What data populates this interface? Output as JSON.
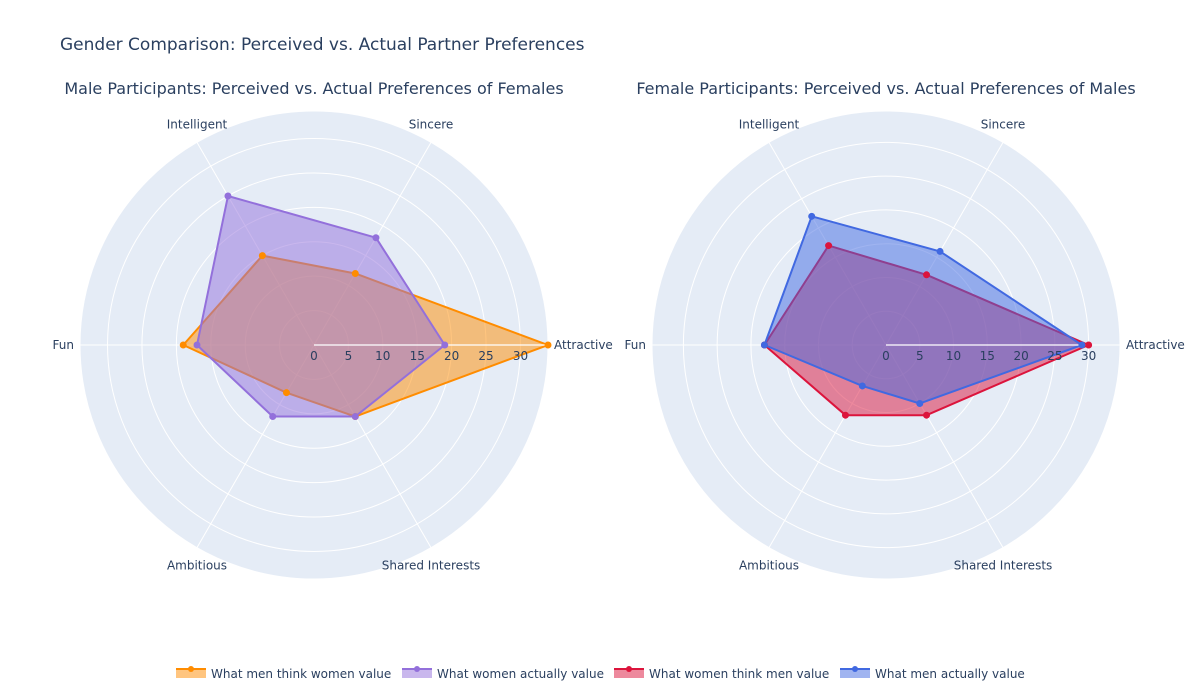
{
  "title": "Gender Comparison: Perceived vs. Actual Partner Preferences",
  "chart_data": [
    {
      "type": "radar",
      "title": "Male Participants: Perceived vs. Actual Preferences of Females",
      "categories": [
        "Attractive",
        "Sincere",
        "Intelligent",
        "Fun",
        "Ambitious",
        "Shared Interests"
      ],
      "radial_ticks": [
        "0",
        "5",
        "10",
        "15",
        "20",
        "25",
        "30"
      ],
      "rlim": [
        0,
        34
      ],
      "series": [
        {
          "name": "What men think women value",
          "color": "#ff8c00",
          "values": [
            34,
            12,
            15,
            19,
            8,
            12
          ]
        },
        {
          "name": "What women actually value",
          "color": "#9370db",
          "values": [
            19,
            18,
            25,
            17,
            12,
            12
          ]
        }
      ]
    },
    {
      "type": "radar",
      "title": "Female Participants: Perceived vs. Actual Preferences of Males",
      "categories": [
        "Attractive",
        "Sincere",
        "Intelligent",
        "Fun",
        "Ambitious",
        "Shared Interests"
      ],
      "radial_ticks": [
        "0",
        "5",
        "10",
        "15",
        "20",
        "25",
        "30"
      ],
      "rlim": [
        0,
        30.5
      ],
      "series": [
        {
          "name": "What women think men value",
          "color": "#dc143c",
          "values": [
            30,
            12,
            17,
            18,
            12,
            12
          ]
        },
        {
          "name": "What men actually value",
          "color": "#4169e1",
          "values": [
            29,
            16,
            22,
            18,
            7,
            10
          ]
        }
      ]
    }
  ],
  "legend": {
    "placement": "bottom-center",
    "items": [
      "What men think women value",
      "What women actually value",
      "What women think men value",
      "What men actually value"
    ]
  }
}
